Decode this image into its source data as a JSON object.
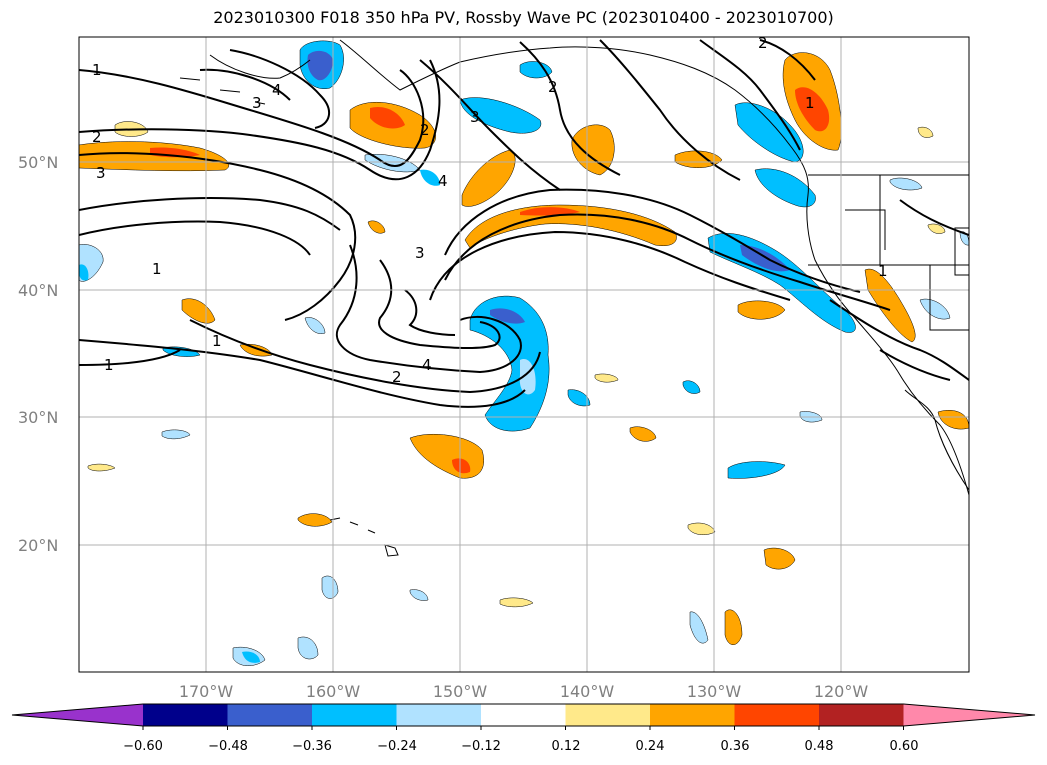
{
  "title": "2023010300 F018 350 hPa PV, Rossby Wave PC (2023010400 - 2023010700)",
  "latitude_labels": [
    "50°N",
    "40°N",
    "30°N",
    "20°N"
  ],
  "longitude_labels": [
    "170°W",
    "160°W",
    "150°W",
    "140°W",
    "130°W",
    "120°W"
  ],
  "colorbar": {
    "tick_labels": [
      "−0.60",
      "−0.48",
      "−0.36",
      "−0.24",
      "−0.12",
      "0.12",
      "0.24",
      "0.36",
      "0.48",
      "0.60"
    ],
    "colors": [
      "#9932cc",
      "#00008b",
      "#3a5fcd",
      "#00bfff",
      "#b0e2ff",
      "#ffffff",
      "#ffe98a",
      "#ffa500",
      "#ff4500",
      "#b22222",
      "#ff88aa"
    ]
  },
  "contour_labels": [
    "1",
    "2",
    "3",
    "4",
    "2",
    "4",
    "2",
    "3",
    "1",
    "2",
    "3",
    "1",
    "1",
    "3",
    "4",
    "2",
    "1",
    "1"
  ],
  "colors": {
    "grid": "#b0b0b0",
    "contour": "#000000",
    "blue_light": "#b0e2ff",
    "blue": "#00bfff",
    "blue_dark": "#3a5fcd",
    "yellow": "#ffe98a",
    "orange": "#ffa500",
    "red": "#ff4500"
  }
}
